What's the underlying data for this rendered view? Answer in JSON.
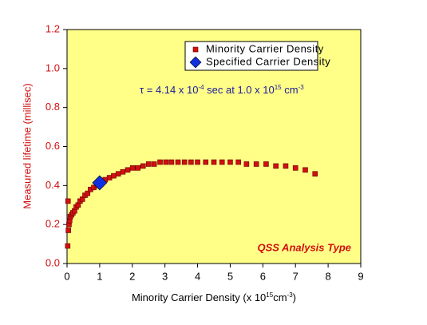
{
  "chart_data": {
    "type": "scatter",
    "y_label": "Measured lifetime (millisec)",
    "x_label": [
      "Minority Carrier Density (x 10",
      "15",
      "cm",
      "-3",
      ")"
    ],
    "annotation": [
      "τ = 4.14 x 10",
      "-4",
      " sec at 1.0 x 10",
      "15",
      " cm",
      "-3"
    ],
    "note": "QSS Analysis Type",
    "xlim": [
      0,
      9
    ],
    "xticks": [
      0,
      1,
      2,
      3,
      4,
      5,
      6,
      7,
      8,
      9
    ],
    "ylim": [
      0,
      1.2
    ],
    "yticks": [
      {
        "value": 0,
        "label": "0.0"
      },
      0.2,
      0.4,
      0.6,
      0.8,
      {
        "value": 1,
        "label": "1.0"
      },
      1.2
    ],
    "grid": false,
    "legend": "top-right",
    "plot_background": "#ffff88",
    "series": [
      {
        "name": "Minority Carrier Density",
        "color": "#d01010",
        "marker": "square",
        "x": [
          0.02,
          0.03,
          0.04,
          0.06,
          0.08,
          0.1,
          0.14,
          0.18,
          0.23,
          0.28,
          0.34,
          0.4,
          0.47,
          0.55,
          0.63,
          0.72,
          0.82,
          0.93,
          1.05,
          1.17,
          1.3,
          1.43,
          1.57,
          1.71,
          1.86,
          2.01,
          2.17,
          2.33,
          2.5,
          2.67,
          2.85,
          3.03,
          3.2,
          3.4,
          3.6,
          3.8,
          4.0,
          4.25,
          4.5,
          4.75,
          5.0,
          5.25,
          5.5,
          5.8,
          6.1,
          6.4,
          6.7,
          7.0,
          7.3,
          7.6
        ],
        "values": [
          0.09,
          0.32,
          0.17,
          0.2,
          0.22,
          0.24,
          0.25,
          0.26,
          0.27,
          0.29,
          0.3,
          0.32,
          0.33,
          0.35,
          0.36,
          0.38,
          0.39,
          0.4,
          0.41,
          0.43,
          0.44,
          0.45,
          0.46,
          0.47,
          0.48,
          0.49,
          0.49,
          0.5,
          0.51,
          0.51,
          0.52,
          0.52,
          0.52,
          0.52,
          0.52,
          0.52,
          0.52,
          0.52,
          0.52,
          0.52,
          0.52,
          0.52,
          0.51,
          0.51,
          0.51,
          0.5,
          0.5,
          0.49,
          0.48,
          0.46
        ]
      },
      {
        "name": "Specified Carrier Density",
        "color": "#1030e0",
        "marker": "diamond",
        "x": [
          1.0
        ],
        "values": [
          0.414
        ]
      }
    ]
  }
}
